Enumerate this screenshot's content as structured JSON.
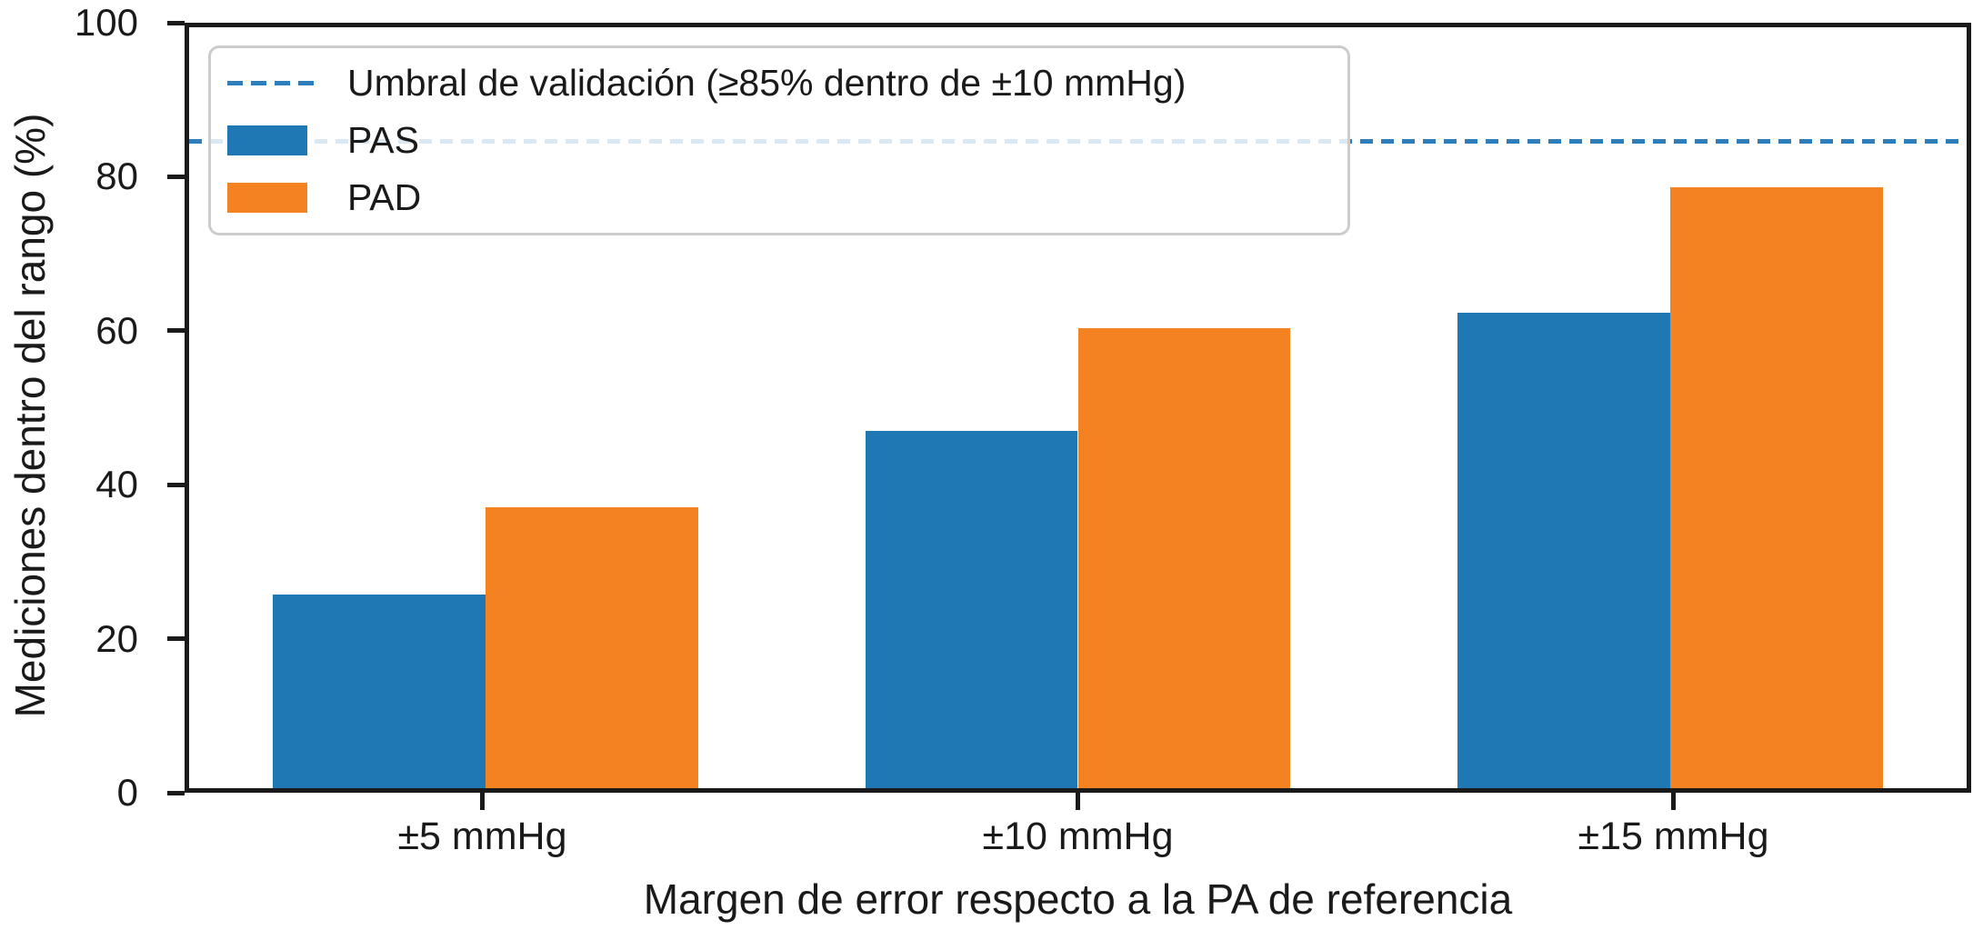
{
  "chart_data": {
    "type": "bar",
    "title": "",
    "xlabel": "Margen de error respecto a la PA de referencia",
    "ylabel": "Mediciones dentro del rango (%)",
    "categories": [
      "±5 mmHg",
      "±10 mmHg",
      "±15 mmHg"
    ],
    "series": [
      {
        "name": "PAS",
        "color": "#1f77b4",
        "values": [
          25.4,
          47.0,
          62.5
        ]
      },
      {
        "name": "PAD",
        "color": "#f58220",
        "values": [
          36.9,
          60.4,
          79.0
        ]
      }
    ],
    "threshold_line": {
      "value": 85,
      "label": "Umbral de validación (≥85% dentro de ±10 mmHg)",
      "color": "#2e7ebc",
      "style": "dashed"
    },
    "ylim": [
      0,
      100
    ],
    "yticks": [
      0,
      20,
      40,
      60,
      80,
      100
    ],
    "grid": false,
    "legend_position": "upper left",
    "axis_color": "#1a1a1a",
    "background_color": "#ffffff"
  }
}
